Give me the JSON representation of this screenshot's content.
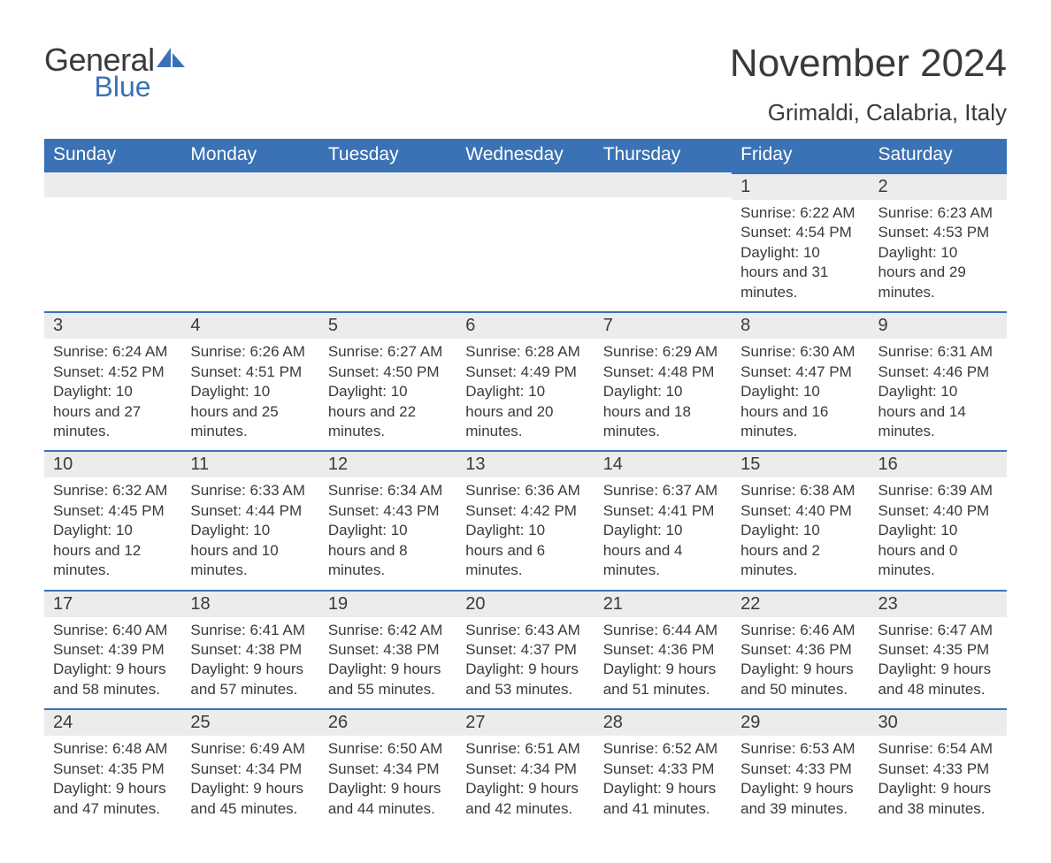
{
  "brand": {
    "line1": "General",
    "line2": "Blue"
  },
  "title": "November 2024",
  "location": "Grimaldi, Calabria, Italy",
  "colors": {
    "header_bg": "#3a72b5",
    "header_fg": "#ffffff",
    "daybar_bg": "#ececec",
    "daybar_border": "#3a72b5",
    "text": "#3a3a3a",
    "brand_blue": "#3a72b5"
  },
  "typography": {
    "title_size_pt": 33,
    "location_size_pt": 20,
    "dow_size_pt": 16,
    "daynum_size_pt": 15,
    "body_size_pt": 13
  },
  "days_of_week": [
    "Sunday",
    "Monday",
    "Tuesday",
    "Wednesday",
    "Thursday",
    "Friday",
    "Saturday"
  ],
  "weeks": [
    [
      null,
      null,
      null,
      null,
      null,
      {
        "n": "1",
        "sr": "Sunrise: 6:22 AM",
        "ss": "Sunset: 4:54 PM",
        "dl": "Daylight: 10 hours and 31 minutes."
      },
      {
        "n": "2",
        "sr": "Sunrise: 6:23 AM",
        "ss": "Sunset: 4:53 PM",
        "dl": "Daylight: 10 hours and 29 minutes."
      }
    ],
    [
      {
        "n": "3",
        "sr": "Sunrise: 6:24 AM",
        "ss": "Sunset: 4:52 PM",
        "dl": "Daylight: 10 hours and 27 minutes."
      },
      {
        "n": "4",
        "sr": "Sunrise: 6:26 AM",
        "ss": "Sunset: 4:51 PM",
        "dl": "Daylight: 10 hours and 25 minutes."
      },
      {
        "n": "5",
        "sr": "Sunrise: 6:27 AM",
        "ss": "Sunset: 4:50 PM",
        "dl": "Daylight: 10 hours and 22 minutes."
      },
      {
        "n": "6",
        "sr": "Sunrise: 6:28 AM",
        "ss": "Sunset: 4:49 PM",
        "dl": "Daylight: 10 hours and 20 minutes."
      },
      {
        "n": "7",
        "sr": "Sunrise: 6:29 AM",
        "ss": "Sunset: 4:48 PM",
        "dl": "Daylight: 10 hours and 18 minutes."
      },
      {
        "n": "8",
        "sr": "Sunrise: 6:30 AM",
        "ss": "Sunset: 4:47 PM",
        "dl": "Daylight: 10 hours and 16 minutes."
      },
      {
        "n": "9",
        "sr": "Sunrise: 6:31 AM",
        "ss": "Sunset: 4:46 PM",
        "dl": "Daylight: 10 hours and 14 minutes."
      }
    ],
    [
      {
        "n": "10",
        "sr": "Sunrise: 6:32 AM",
        "ss": "Sunset: 4:45 PM",
        "dl": "Daylight: 10 hours and 12 minutes."
      },
      {
        "n": "11",
        "sr": "Sunrise: 6:33 AM",
        "ss": "Sunset: 4:44 PM",
        "dl": "Daylight: 10 hours and 10 minutes."
      },
      {
        "n": "12",
        "sr": "Sunrise: 6:34 AM",
        "ss": "Sunset: 4:43 PM",
        "dl": "Daylight: 10 hours and 8 minutes."
      },
      {
        "n": "13",
        "sr": "Sunrise: 6:36 AM",
        "ss": "Sunset: 4:42 PM",
        "dl": "Daylight: 10 hours and 6 minutes."
      },
      {
        "n": "14",
        "sr": "Sunrise: 6:37 AM",
        "ss": "Sunset: 4:41 PM",
        "dl": "Daylight: 10 hours and 4 minutes."
      },
      {
        "n": "15",
        "sr": "Sunrise: 6:38 AM",
        "ss": "Sunset: 4:40 PM",
        "dl": "Daylight: 10 hours and 2 minutes."
      },
      {
        "n": "16",
        "sr": "Sunrise: 6:39 AM",
        "ss": "Sunset: 4:40 PM",
        "dl": "Daylight: 10 hours and 0 minutes."
      }
    ],
    [
      {
        "n": "17",
        "sr": "Sunrise: 6:40 AM",
        "ss": "Sunset: 4:39 PM",
        "dl": "Daylight: 9 hours and 58 minutes."
      },
      {
        "n": "18",
        "sr": "Sunrise: 6:41 AM",
        "ss": "Sunset: 4:38 PM",
        "dl": "Daylight: 9 hours and 57 minutes."
      },
      {
        "n": "19",
        "sr": "Sunrise: 6:42 AM",
        "ss": "Sunset: 4:38 PM",
        "dl": "Daylight: 9 hours and 55 minutes."
      },
      {
        "n": "20",
        "sr": "Sunrise: 6:43 AM",
        "ss": "Sunset: 4:37 PM",
        "dl": "Daylight: 9 hours and 53 minutes."
      },
      {
        "n": "21",
        "sr": "Sunrise: 6:44 AM",
        "ss": "Sunset: 4:36 PM",
        "dl": "Daylight: 9 hours and 51 minutes."
      },
      {
        "n": "22",
        "sr": "Sunrise: 6:46 AM",
        "ss": "Sunset: 4:36 PM",
        "dl": "Daylight: 9 hours and 50 minutes."
      },
      {
        "n": "23",
        "sr": "Sunrise: 6:47 AM",
        "ss": "Sunset: 4:35 PM",
        "dl": "Daylight: 9 hours and 48 minutes."
      }
    ],
    [
      {
        "n": "24",
        "sr": "Sunrise: 6:48 AM",
        "ss": "Sunset: 4:35 PM",
        "dl": "Daylight: 9 hours and 47 minutes."
      },
      {
        "n": "25",
        "sr": "Sunrise: 6:49 AM",
        "ss": "Sunset: 4:34 PM",
        "dl": "Daylight: 9 hours and 45 minutes."
      },
      {
        "n": "26",
        "sr": "Sunrise: 6:50 AM",
        "ss": "Sunset: 4:34 PM",
        "dl": "Daylight: 9 hours and 44 minutes."
      },
      {
        "n": "27",
        "sr": "Sunrise: 6:51 AM",
        "ss": "Sunset: 4:34 PM",
        "dl": "Daylight: 9 hours and 42 minutes."
      },
      {
        "n": "28",
        "sr": "Sunrise: 6:52 AM",
        "ss": "Sunset: 4:33 PM",
        "dl": "Daylight: 9 hours and 41 minutes."
      },
      {
        "n": "29",
        "sr": "Sunrise: 6:53 AM",
        "ss": "Sunset: 4:33 PM",
        "dl": "Daylight: 9 hours and 39 minutes."
      },
      {
        "n": "30",
        "sr": "Sunrise: 6:54 AM",
        "ss": "Sunset: 4:33 PM",
        "dl": "Daylight: 9 hours and 38 minutes."
      }
    ]
  ]
}
